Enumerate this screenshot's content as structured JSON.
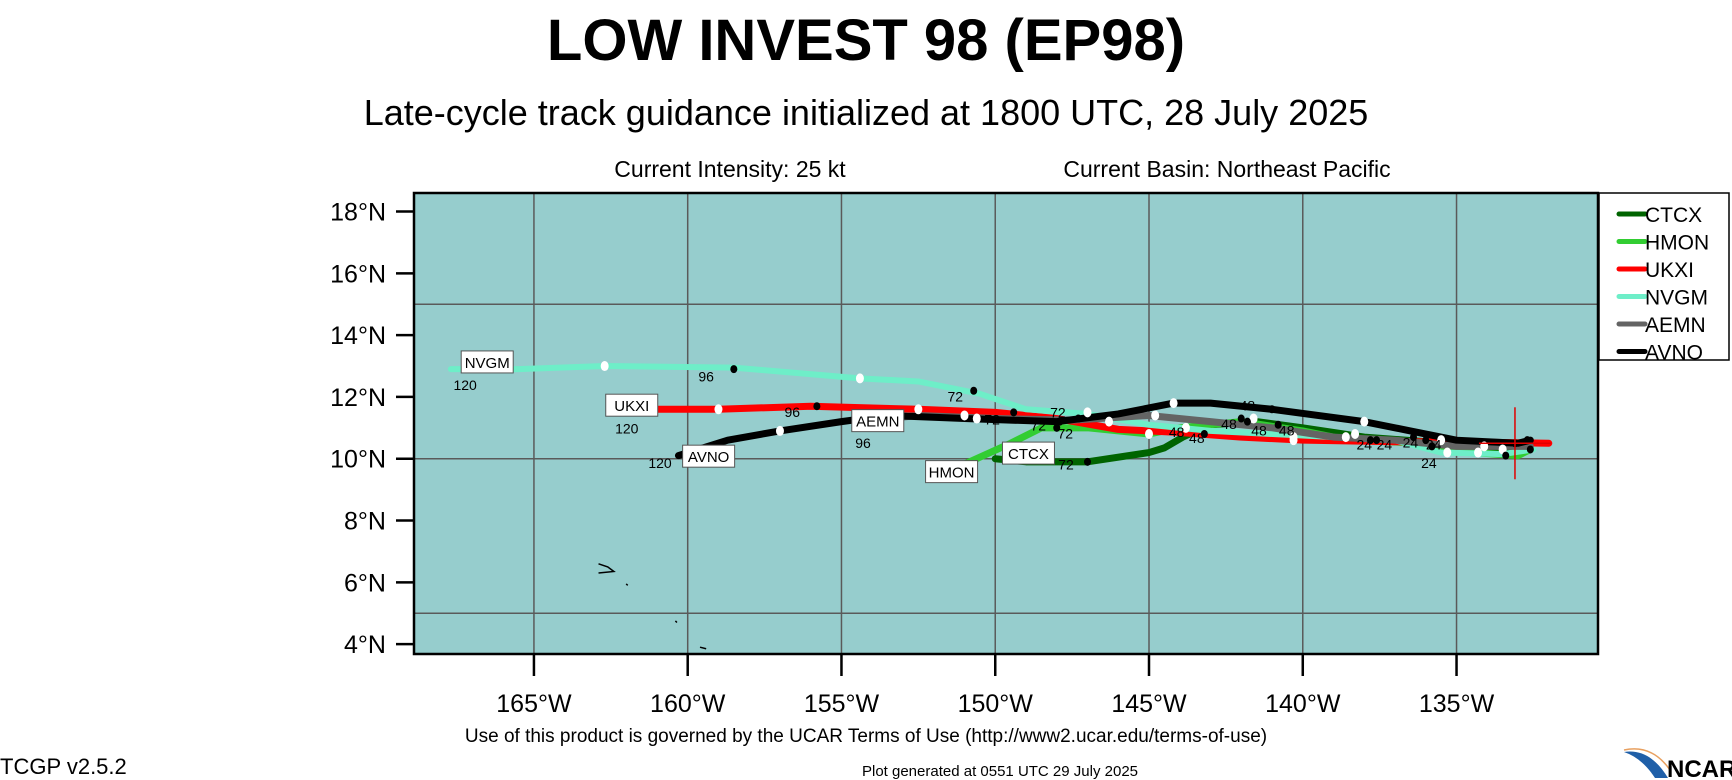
{
  "header": {
    "title": "LOW INVEST 98 (EP98)",
    "subtitle": "Late-cycle track guidance initialized at 1800 UTC, 28 July 2025",
    "intensity": "Current Intensity: 25 kt",
    "basin": "Current Basin: Northeast Pacific"
  },
  "footer": {
    "terms": "Use of this product is governed by the UCAR Terms of Use (http://www2.ucar.edu/terms-of-use)",
    "version": "TCGP v2.5.2",
    "generated": "Plot generated at 0551 UTC   29 July 2025",
    "logo": "NCAR"
  },
  "chart_data": {
    "type": "line",
    "title": "LOW INVEST 98 (EP98)",
    "xlim": [
      -168.9,
      -130.4
    ],
    "ylim": [
      3.68,
      18.6
    ],
    "x_ticks": [
      {
        "v": -165,
        "label": "165°W"
      },
      {
        "v": -160,
        "label": "160°W"
      },
      {
        "v": -155,
        "label": "155°W"
      },
      {
        "v": -150,
        "label": "150°W"
      },
      {
        "v": -145,
        "label": "145°W"
      },
      {
        "v": -140,
        "label": "140°W"
      },
      {
        "v": -135,
        "label": "135°W"
      }
    ],
    "y_ticks": [
      {
        "v": 18,
        "label": "18°N"
      },
      {
        "v": 16,
        "label": "16°N"
      },
      {
        "v": 14,
        "label": "14°N"
      },
      {
        "v": 12,
        "label": "12°N"
      },
      {
        "v": 10,
        "label": "10°N"
      },
      {
        "v": 8,
        "label": "8°N"
      },
      {
        "v": 6,
        "label": "6°N"
      },
      {
        "v": 4,
        "label": "4°N"
      }
    ],
    "grid_lon": [
      -165,
      -160,
      -155,
      -150,
      -145,
      -140,
      -135
    ],
    "grid_lat": [
      5,
      10,
      15
    ],
    "background": "#96cdcd",
    "legend_position": "right",
    "current_position": [
      -133.1,
      10.5
    ],
    "series": [
      {
        "name": "CTCX",
        "color": "#006400",
        "points": [
          [
            -150,
            10.0
          ],
          [
            -149,
            9.9
          ],
          [
            -147,
            9.9
          ],
          [
            -145,
            10.2
          ],
          [
            -144.5,
            10.35
          ],
          [
            -143.9,
            10.7
          ],
          [
            -143,
            11.1
          ],
          [
            -141.5,
            11.2
          ],
          [
            -140,
            11.0
          ],
          [
            -138,
            10.7
          ],
          [
            -136,
            10.55
          ],
          [
            -134,
            10.35
          ],
          [
            -132.6,
            10.4
          ]
        ],
        "label_at": [
          -149.7,
          10.15
        ]
      },
      {
        "name": "HMON",
        "color": "#32cd32",
        "points": [
          [
            -151.5,
            9.6
          ],
          [
            -149.5,
            10.5
          ],
          [
            -148.5,
            11.0
          ],
          [
            -147,
            11.0
          ],
          [
            -145,
            10.8
          ],
          [
            -144,
            11.0
          ],
          [
            -142,
            11.2
          ],
          [
            -140,
            10.9
          ],
          [
            -138.5,
            10.6
          ],
          [
            -136,
            10.5
          ],
          [
            -134.5,
            10.2
          ],
          [
            -133,
            10.1
          ],
          [
            -132.6,
            10.3
          ]
        ],
        "label_at": [
          -152.2,
          9.55
        ]
      },
      {
        "name": "UKXI",
        "color": "#ff0000",
        "points": [
          [
            -162.4,
            11.6
          ],
          [
            -159,
            11.6
          ],
          [
            -156,
            11.7
          ],
          [
            -152.5,
            11.6
          ],
          [
            -150,
            11.5
          ],
          [
            -148,
            11.3
          ],
          [
            -146,
            10.95
          ],
          [
            -144,
            10.85
          ],
          [
            -142,
            10.7
          ],
          [
            -140,
            10.6
          ],
          [
            -137,
            10.55
          ],
          [
            -135,
            10.55
          ],
          [
            -132,
            10.5
          ]
        ],
        "label_at": [
          -162.6,
          11.7
        ]
      },
      {
        "name": "NVGM",
        "color": "#6eeec8",
        "points": [
          [
            -167.7,
            12.9
          ],
          [
            -165.5,
            12.9
          ],
          [
            -162.7,
            13.0
          ],
          [
            -158.5,
            12.95
          ],
          [
            -154.4,
            12.6
          ],
          [
            -152.5,
            12.5
          ],
          [
            -150.5,
            12.1
          ],
          [
            -149,
            11.6
          ],
          [
            -147,
            11.45
          ],
          [
            -145,
            11.1
          ],
          [
            -143,
            10.9
          ],
          [
            -140,
            10.75
          ],
          [
            -137,
            10.6
          ],
          [
            -135.5,
            10.2
          ],
          [
            -133.5,
            10.15
          ],
          [
            -132.5,
            10.3
          ]
        ],
        "label_at": [
          -167.3,
          13.1
        ]
      },
      {
        "name": "AEMN",
        "color": "#646464",
        "points": [
          [
            -153.5,
            11.3
          ],
          [
            -152.5,
            11.4
          ],
          [
            -150,
            11.3
          ],
          [
            -147.5,
            11.25
          ],
          [
            -145,
            11.4
          ],
          [
            -143,
            11.2
          ],
          [
            -141,
            11.0
          ],
          [
            -139,
            10.7
          ],
          [
            -137,
            10.6
          ],
          [
            -135,
            10.4
          ],
          [
            -132.6,
            10.4
          ]
        ],
        "label_at": [
          -154.6,
          11.2
        ]
      },
      {
        "name": "AVNO",
        "color": "#000000",
        "points": [
          [
            -160.3,
            10.1
          ],
          [
            -158.7,
            10.6
          ],
          [
            -157,
            10.9
          ],
          [
            -155,
            11.2
          ],
          [
            -153.5,
            11.4
          ],
          [
            -151,
            11.3
          ],
          [
            -148,
            11.2
          ],
          [
            -146,
            11.45
          ],
          [
            -144.2,
            11.8
          ],
          [
            -143,
            11.8
          ],
          [
            -141,
            11.6
          ],
          [
            -138,
            11.2
          ],
          [
            -136.5,
            10.9
          ],
          [
            -135,
            10.6
          ],
          [
            -133,
            10.5
          ],
          [
            -132.6,
            10.6
          ]
        ],
        "label_at": [
          -160.1,
          10.05
        ]
      }
    ],
    "white_dots": [
      [
        -162.7,
        13.0
      ],
      [
        -154.4,
        12.6
      ],
      [
        -159,
        11.6
      ],
      [
        -152.5,
        11.6
      ],
      [
        -157,
        10.9
      ],
      [
        -151,
        11.4
      ],
      [
        -150.6,
        11.3
      ],
      [
        -147,
        11.5
      ],
      [
        -146.3,
        11.2
      ],
      [
        -144.2,
        11.8
      ],
      [
        -144.8,
        11.4
      ],
      [
        -145,
        10.8
      ],
      [
        -143.8,
        11.0
      ],
      [
        -141.6,
        11.3
      ],
      [
        -140.3,
        10.6
      ],
      [
        -138,
        11.2
      ],
      [
        -138.6,
        10.7
      ],
      [
        -138.3,
        10.8
      ],
      [
        -135.5,
        10.6
      ],
      [
        -135.3,
        10.2
      ],
      [
        -134.3,
        10.2
      ],
      [
        -134.1,
        10.4
      ],
      [
        -133.5,
        10.3
      ],
      [
        -140.3,
        10.7
      ]
    ],
    "black_dots": [
      [
        -158.5,
        12.9
      ],
      [
        -155.8,
        11.7
      ],
      [
        -150.7,
        12.2
      ],
      [
        -149.4,
        11.5
      ],
      [
        -154,
        11.3
      ],
      [
        -153.6,
        11.4
      ],
      [
        -148,
        11.0
      ],
      [
        -147.3,
        11.3
      ],
      [
        -147.9,
        11.2
      ],
      [
        -147.0,
        9.9
      ],
      [
        -143.2,
        10.8
      ],
      [
        -142,
        11.3
      ],
      [
        -141.8,
        11.2
      ],
      [
        -141,
        11.6
      ],
      [
        -140.8,
        11.1
      ],
      [
        -137.8,
        10.6
      ],
      [
        -137.6,
        10.6
      ],
      [
        -136.4,
        10.7
      ],
      [
        -136,
        10.6
      ],
      [
        -135.8,
        10.4
      ],
      [
        -133.4,
        10.1
      ],
      [
        -133.1,
        10.5
      ],
      [
        -132.7,
        10.6
      ],
      [
        -132.6,
        10.3
      ]
    ],
    "time_labels": [
      {
        "text": "120",
        "lon": -167.4,
        "lat": 12.75
      },
      {
        "text": "96",
        "lon": -159.4,
        "lat": 12.7
      },
      {
        "text": "72",
        "lon": -151.3,
        "lat": 12.05
      },
      {
        "text": "120",
        "lon": -162.6,
        "lat": 11.5
      },
      {
        "text": "96",
        "lon": -156.6,
        "lat": 11.55
      },
      {
        "text": "72",
        "lon": -150.1,
        "lat": 11.3
      },
      {
        "text": "96",
        "lon": -154.3,
        "lat": 11.25
      },
      {
        "text": "120",
        "lon": -160.9,
        "lat": 9.9
      },
      {
        "text": "72",
        "lon": -148.6,
        "lat": 11.1
      },
      {
        "text": "72",
        "lon": -148.6,
        "lat": 10.85
      },
      {
        "text": "72",
        "lon": -147.8,
        "lat": 11.2
      },
      {
        "text": "72",
        "lon": -147.7,
        "lat": 9.85
      },
      {
        "text": "48",
        "lon": -144.1,
        "lat": 10.9
      },
      {
        "text": "48",
        "lon": -143.9,
        "lat": 10.7
      },
      {
        "text": "48",
        "lon": -142.4,
        "lat": 11.15
      },
      {
        "text": "48",
        "lon": -142.3,
        "lat": 10.95
      },
      {
        "text": "48",
        "lon": -141.8,
        "lat": 11.4
      },
      {
        "text": "48",
        "lon": -141.4,
        "lat": 10.95
      },
      {
        "text": "24",
        "lon": -138.0,
        "lat": 10.5
      },
      {
        "text": "24",
        "lon": -137.8,
        "lat": 10.5
      },
      {
        "text": "24",
        "lon": -136.5,
        "lat": 10.55
      },
      {
        "text": "24",
        "lon": -136.2,
        "lat": 10.5
      },
      {
        "text": "24",
        "lon": -135.9,
        "lat": 10.25
      }
    ],
    "islands": [
      [
        [
          -162.9,
          6.6
        ],
        [
          -162.6,
          6.5
        ],
        [
          -162.4,
          6.35
        ],
        [
          -162.9,
          6.3
        ]
      ],
      [
        [
          -162.0,
          5.95
        ],
        [
          -161.95,
          5.9
        ]
      ],
      [
        [
          -160.4,
          4.75
        ],
        [
          -160.35,
          4.7
        ]
      ],
      [
        [
          -159.6,
          3.9
        ],
        [
          -159.4,
          3.85
        ]
      ]
    ]
  }
}
